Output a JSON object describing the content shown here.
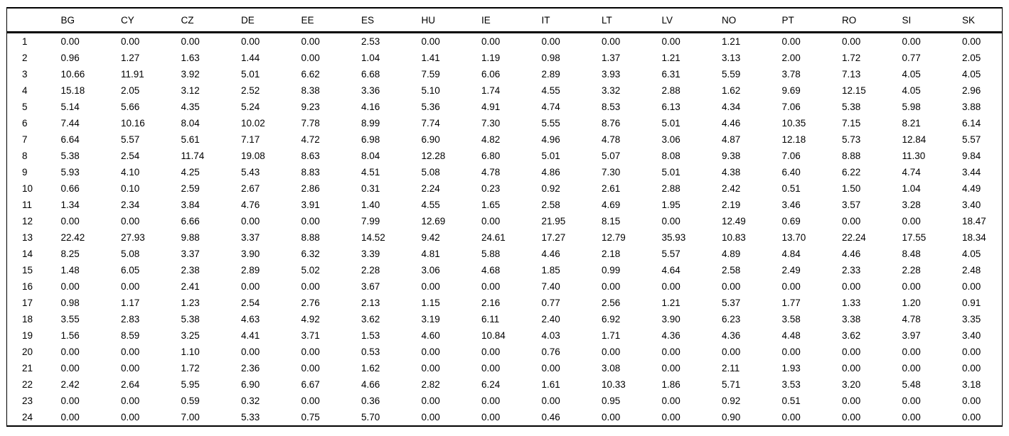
{
  "chart_data": {
    "type": "table",
    "title": "",
    "corner_label": "",
    "columns": [
      "BG",
      "CY",
      "CZ",
      "DE",
      "EE",
      "ES",
      "HU",
      "IE",
      "IT",
      "LT",
      "LV",
      "NO",
      "PT",
      "RO",
      "SI",
      "SK"
    ],
    "row_labels": [
      "1",
      "2",
      "3",
      "4",
      "5",
      "6",
      "7",
      "8",
      "9",
      "10",
      "11",
      "12",
      "13",
      "14",
      "15",
      "16",
      "17",
      "18",
      "19",
      "20",
      "21",
      "22",
      "23",
      "24"
    ],
    "rows": [
      [
        "0.00",
        "0.00",
        "0.00",
        "0.00",
        "0.00",
        "2.53",
        "0.00",
        "0.00",
        "0.00",
        "0.00",
        "0.00",
        "1.21",
        "0.00",
        "0.00",
        "0.00",
        "0.00"
      ],
      [
        "0.96",
        "1.27",
        "1.63",
        "1.44",
        "0.00",
        "1.04",
        "1.41",
        "1.19",
        "0.98",
        "1.37",
        "1.21",
        "3.13",
        "2.00",
        "1.72",
        "0.77",
        "2.05"
      ],
      [
        "10.66",
        "11.91",
        "3.92",
        "5.01",
        "6.62",
        "6.68",
        "7.59",
        "6.06",
        "2.89",
        "3.93",
        "6.31",
        "5.59",
        "3.78",
        "7.13",
        "4.05",
        "4.05"
      ],
      [
        "15.18",
        "2.05",
        "3.12",
        "2.52",
        "8.38",
        "3.36",
        "5.10",
        "1.74",
        "4.55",
        "3.32",
        "2.88",
        "1.62",
        "9.69",
        "12.15",
        "4.05",
        "2.96"
      ],
      [
        "5.14",
        "5.66",
        "4.35",
        "5.24",
        "9.23",
        "4.16",
        "5.36",
        "4.91",
        "4.74",
        "8.53",
        "6.13",
        "4.34",
        "7.06",
        "5.38",
        "5.98",
        "3.88"
      ],
      [
        "7.44",
        "10.16",
        "8.04",
        "10.02",
        "7.78",
        "8.99",
        "7.74",
        "7.30",
        "5.55",
        "8.76",
        "5.01",
        "4.46",
        "10.35",
        "7.15",
        "8.21",
        "6.14"
      ],
      [
        "6.64",
        "5.57",
        "5.61",
        "7.17",
        "4.72",
        "6.98",
        "6.90",
        "4.82",
        "4.96",
        "4.78",
        "3.06",
        "4.87",
        "12.18",
        "5.73",
        "12.84",
        "5.57"
      ],
      [
        "5.38",
        "2.54",
        "11.74",
        "19.08",
        "8.63",
        "8.04",
        "12.28",
        "6.80",
        "5.01",
        "5.07",
        "8.08",
        "9.38",
        "7.06",
        "8.88",
        "11.30",
        "9.84"
      ],
      [
        "5.93",
        "4.10",
        "4.25",
        "5.43",
        "8.83",
        "4.51",
        "5.08",
        "4.78",
        "4.86",
        "7.30",
        "5.01",
        "4.38",
        "6.40",
        "6.22",
        "4.74",
        "3.44"
      ],
      [
        "0.66",
        "0.10",
        "2.59",
        "2.67",
        "2.86",
        "0.31",
        "2.24",
        "0.23",
        "0.92",
        "2.61",
        "2.88",
        "2.42",
        "0.51",
        "1.50",
        "1.04",
        "4.49"
      ],
      [
        "1.34",
        "2.34",
        "3.84",
        "4.76",
        "3.91",
        "1.40",
        "4.55",
        "1.65",
        "2.58",
        "4.69",
        "1.95",
        "2.19",
        "3.46",
        "3.57",
        "3.28",
        "3.40"
      ],
      [
        "0.00",
        "0.00",
        "6.66",
        "0.00",
        "0.00",
        "7.99",
        "12.69",
        "0.00",
        "21.95",
        "8.15",
        "0.00",
        "12.49",
        "0.69",
        "0.00",
        "0.00",
        "18.47"
      ],
      [
        "22.42",
        "27.93",
        "9.88",
        "3.37",
        "8.88",
        "14.52",
        "9.42",
        "24.61",
        "17.27",
        "12.79",
        "35.93",
        "10.83",
        "13.70",
        "22.24",
        "17.55",
        "18.34"
      ],
      [
        "8.25",
        "5.08",
        "3.37",
        "3.90",
        "6.32",
        "3.39",
        "4.81",
        "5.88",
        "4.46",
        "2.18",
        "5.57",
        "4.89",
        "4.84",
        "4.46",
        "8.48",
        "4.05"
      ],
      [
        "1.48",
        "6.05",
        "2.38",
        "2.89",
        "5.02",
        "2.28",
        "3.06",
        "4.68",
        "1.85",
        "0.99",
        "4.64",
        "2.58",
        "2.49",
        "2.33",
        "2.28",
        "2.48"
      ],
      [
        "0.00",
        "0.00",
        "2.41",
        "0.00",
        "0.00",
        "3.67",
        "0.00",
        "0.00",
        "7.40",
        "0.00",
        "0.00",
        "0.00",
        "0.00",
        "0.00",
        "0.00",
        "0.00"
      ],
      [
        "0.98",
        "1.17",
        "1.23",
        "2.54",
        "2.76",
        "2.13",
        "1.15",
        "2.16",
        "0.77",
        "2.56",
        "1.21",
        "5.37",
        "1.77",
        "1.33",
        "1.20",
        "0.91"
      ],
      [
        "3.55",
        "2.83",
        "5.38",
        "4.63",
        "4.92",
        "3.62",
        "3.19",
        "6.11",
        "2.40",
        "6.92",
        "3.90",
        "6.23",
        "3.58",
        "3.38",
        "4.78",
        "3.35"
      ],
      [
        "1.56",
        "8.59",
        "3.25",
        "4.41",
        "3.71",
        "1.53",
        "4.60",
        "10.84",
        "4.03",
        "1.71",
        "4.36",
        "4.36",
        "4.48",
        "3.62",
        "3.97",
        "3.40"
      ],
      [
        "0.00",
        "0.00",
        "1.10",
        "0.00",
        "0.00",
        "0.53",
        "0.00",
        "0.00",
        "0.76",
        "0.00",
        "0.00",
        "0.00",
        "0.00",
        "0.00",
        "0.00",
        "0.00"
      ],
      [
        "0.00",
        "0.00",
        "1.72",
        "2.36",
        "0.00",
        "1.62",
        "0.00",
        "0.00",
        "0.00",
        "3.08",
        "0.00",
        "2.11",
        "1.93",
        "0.00",
        "0.00",
        "0.00"
      ],
      [
        "2.42",
        "2.64",
        "5.95",
        "6.90",
        "6.67",
        "4.66",
        "2.82",
        "6.24",
        "1.61",
        "10.33",
        "1.86",
        "5.71",
        "3.53",
        "3.20",
        "5.48",
        "3.18"
      ],
      [
        "0.00",
        "0.00",
        "0.59",
        "0.32",
        "0.00",
        "0.36",
        "0.00",
        "0.00",
        "0.00",
        "0.95",
        "0.00",
        "0.92",
        "0.51",
        "0.00",
        "0.00",
        "0.00"
      ],
      [
        "0.00",
        "0.00",
        "7.00",
        "5.33",
        "0.75",
        "5.70",
        "0.00",
        "0.00",
        "0.46",
        "0.00",
        "0.00",
        "0.90",
        "0.00",
        "0.00",
        "0.00",
        "0.00"
      ]
    ],
    "layout": {
      "grid": "horizontal rules only: thin top rule, thick rule under header, bottom rule, thin vertical rules at left and right edges",
      "text_color": "#000000",
      "background": "#ffffff"
    }
  }
}
